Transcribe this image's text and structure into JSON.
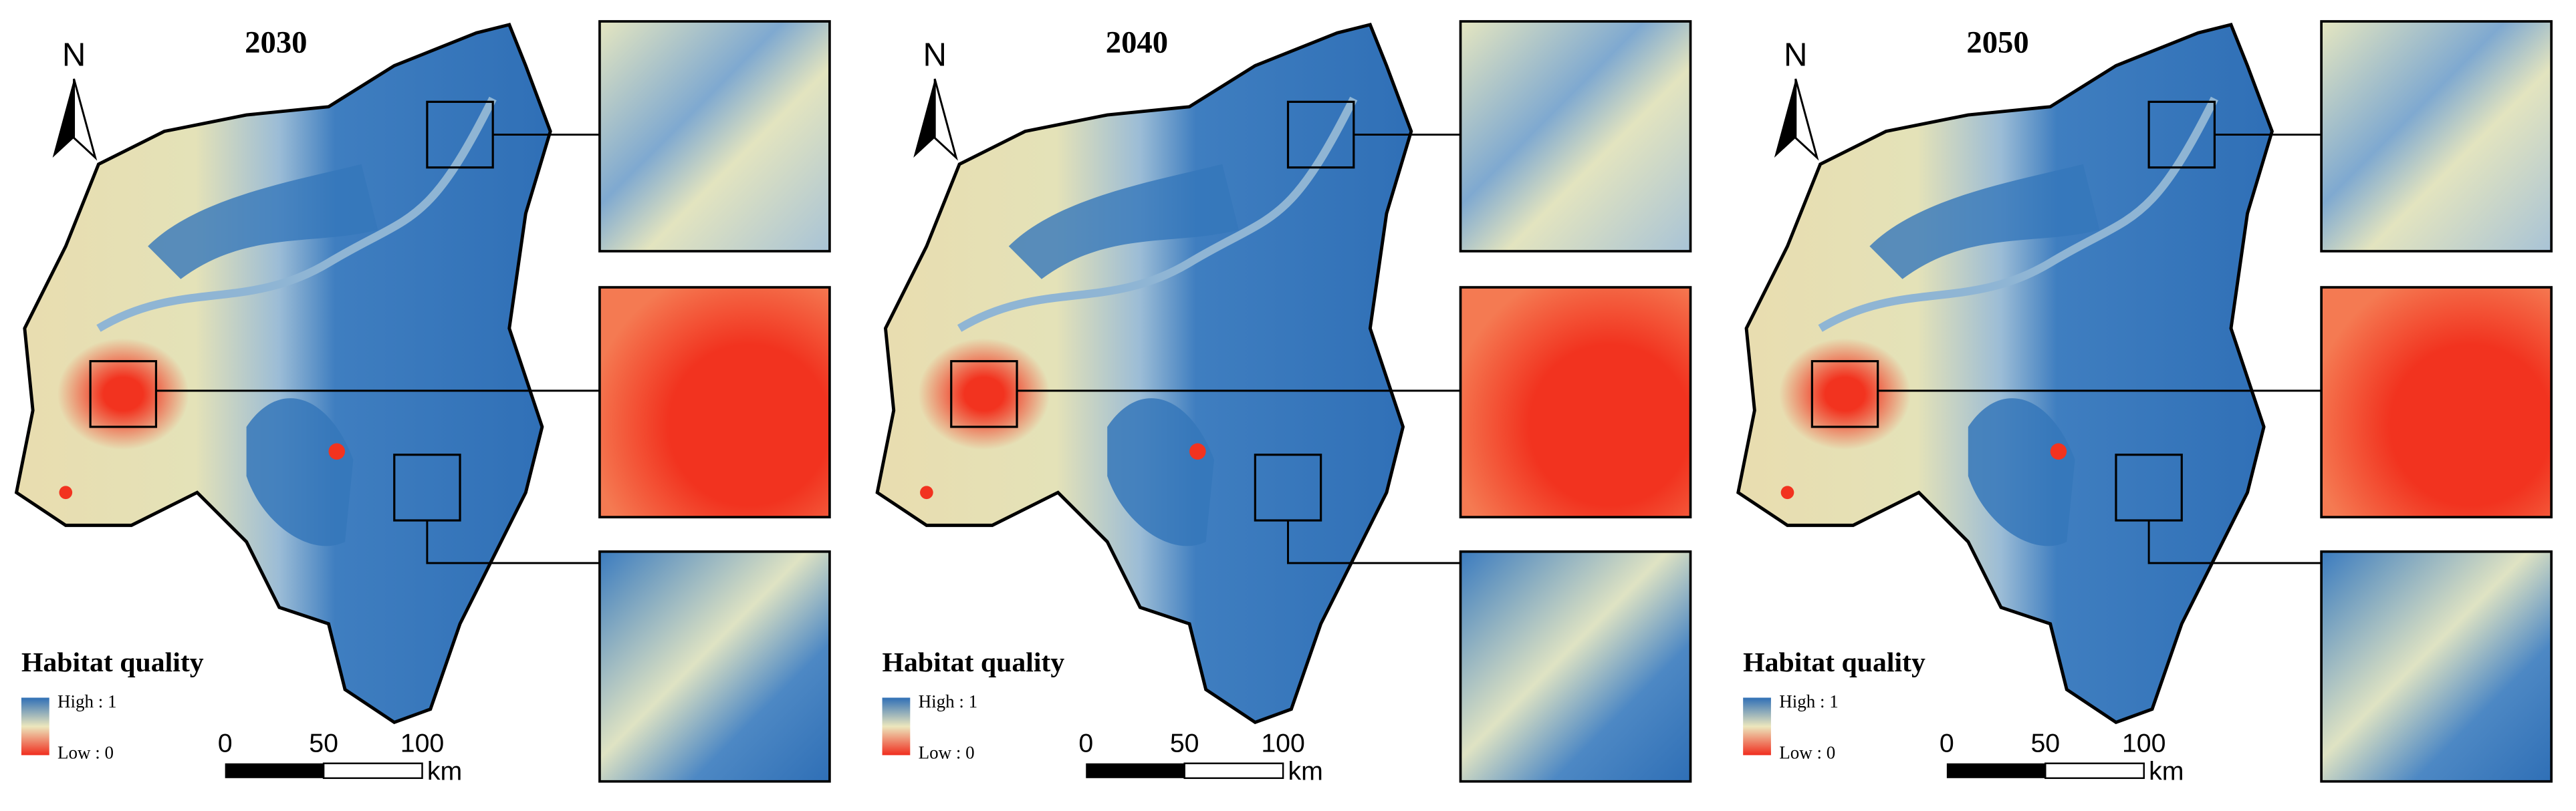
{
  "panels": [
    {
      "title": "2030"
    },
    {
      "title": "2040"
    },
    {
      "title": "2050"
    }
  ],
  "north": "N",
  "legend": {
    "title": "Habitat quality",
    "high": "High : 1",
    "low": "Low : 0"
  },
  "scale_bar": {
    "ticks": [
      0,
      50,
      100
    ],
    "unit": "km"
  }
}
